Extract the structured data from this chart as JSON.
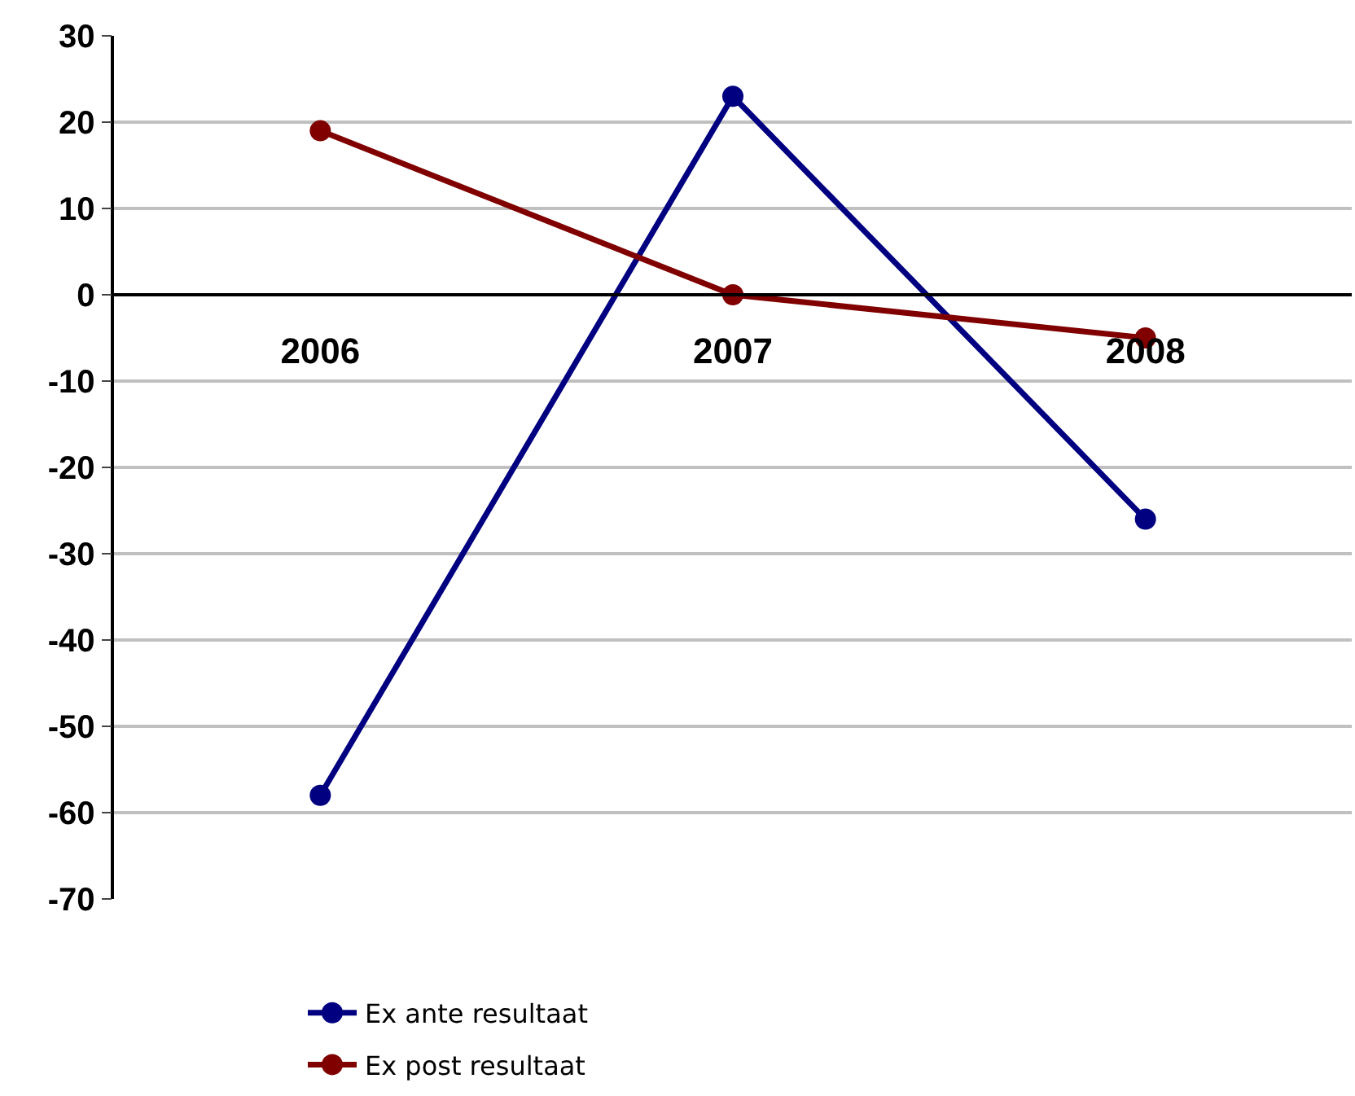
{
  "chart_data": {
    "type": "line",
    "categories": [
      "2006",
      "2007",
      "2008"
    ],
    "series": [
      {
        "name": "Ex ante resultaat",
        "color": "#000080",
        "values": [
          -58,
          23,
          -26
        ]
      },
      {
        "name": "Ex post resultaat",
        "color": "#800000",
        "values": [
          19,
          0,
          -5
        ]
      }
    ],
    "ylim": [
      -70,
      30
    ],
    "yticks": [
      -70,
      -60,
      -50,
      -40,
      -30,
      -20,
      -10,
      0,
      10,
      20,
      30
    ],
    "grid": "y",
    "legend": "bottom",
    "marker": "circle",
    "line_style": "solid"
  }
}
